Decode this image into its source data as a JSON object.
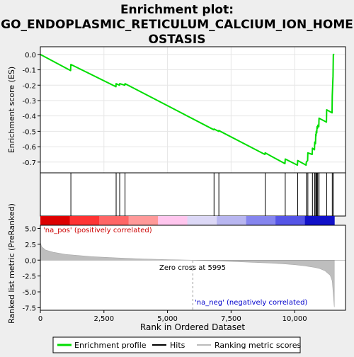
{
  "chart_data": {
    "type": "line",
    "title": "Enrichment plot: GO_ENDOPLASMIC_RETICULUM_CALCIUM_ION_HOMEOSTASIS",
    "title_lines": [
      "Enrichment plot:",
      "GO_ENDOPLASMIC_RETICULUM_CALCIUM_ION_HOME",
      "OSTASIS"
    ],
    "xlabel": "Rank in Ordered Dataset",
    "ylabel_top": "Enrichment score (ES)",
    "ylabel_bottom": "Ranked list metric (PreRanked)",
    "xlim": [
      0,
      12000
    ],
    "es_ylim": [
      -0.77,
      0.05
    ],
    "metric_ylim": [
      -7.9,
      5.5
    ],
    "x_ticks": [
      0,
      2500,
      5000,
      7500,
      10000
    ],
    "x_tick_labels": [
      "0",
      "2,500",
      "5,000",
      "7,500",
      "10,000"
    ],
    "es_ticks": [
      0.0,
      -0.1,
      -0.2,
      -0.3,
      -0.4,
      -0.5,
      -0.6,
      -0.7
    ],
    "es_tick_labels": [
      "0.0",
      "-0.1",
      "-0.2",
      "-0.3",
      "-0.4",
      "-0.5",
      "-0.6",
      "-0.7"
    ],
    "metric_ticks": [
      5.0,
      2.5,
      0.0,
      -2.5,
      -5.0,
      -7.5
    ],
    "metric_tick_labels": [
      "5.0",
      "2.5",
      "0.0",
      "-2.5",
      "-5.0",
      "-7.5"
    ],
    "hits": [
      1200,
      2980,
      3120,
      3330,
      6830,
      7020,
      8840,
      9630,
      10120,
      10460,
      10520,
      10700,
      10790,
      10830,
      10850,
      10880,
      10910,
      10960,
      11260,
      11480,
      11520
    ],
    "es_profile": {
      "x": [
        0,
        1190,
        1200,
        2970,
        2980,
        3110,
        3120,
        3320,
        3330,
        6820,
        6830,
        7010,
        7020,
        8830,
        8840,
        9620,
        9630,
        10110,
        10120,
        10450,
        10460,
        10510,
        10520,
        10690,
        10700,
        10780,
        10790,
        10820,
        10830,
        10840,
        10850,
        10870,
        10880,
        10900,
        10910,
        10950,
        10960,
        11250,
        11260,
        11470,
        11480,
        11510,
        11520,
        11560
      ],
      "y": [
        0.0,
        -0.105,
        -0.065,
        -0.21,
        -0.19,
        -0.2,
        -0.19,
        -0.2,
        -0.19,
        -0.49,
        -0.485,
        -0.5,
        -0.495,
        -0.65,
        -0.64,
        -0.71,
        -0.68,
        -0.72,
        -0.69,
        -0.72,
        -0.7,
        -0.69,
        -0.64,
        -0.65,
        -0.61,
        -0.62,
        -0.57,
        -0.58,
        -0.52,
        -0.53,
        -0.5,
        -0.51,
        -0.47,
        -0.48,
        -0.46,
        -0.47,
        -0.415,
        -0.44,
        -0.36,
        -0.38,
        -0.27,
        -0.14,
        0.0,
        0.0
      ]
    },
    "metric_profile": {
      "x": [
        0,
        50,
        200,
        500,
        1000,
        2000,
        3000,
        4000,
        5000,
        5995,
        7000,
        8000,
        9000,
        9600,
        10000,
        10400,
        10800,
        11000,
        11200,
        11400,
        11480,
        11520,
        11560
      ],
      "y": [
        2.8,
        2.1,
        1.6,
        1.25,
        0.9,
        0.55,
        0.35,
        0.2,
        0.08,
        0.0,
        -0.13,
        -0.28,
        -0.45,
        -0.6,
        -0.72,
        -0.9,
        -1.15,
        -1.35,
        -1.7,
        -2.4,
        -3.3,
        -5.5,
        -7.4
      ]
    },
    "heatmap_band_colors": [
      "#dd0000",
      "#ff3333",
      "#ff6666",
      "#ff9999",
      "#ffc6ee",
      "#dcd8f6",
      "#b8b6f0",
      "#8585ee",
      "#5555e6",
      "#1111c8"
    ],
    "labels": {
      "na_pos": "'na_pos' (positively correlated)",
      "na_neg": "'na_neg' (negatively correlated)",
      "zero_cross": "Zero cross at 5995"
    },
    "zero_cross": 5995,
    "legend": [
      {
        "label": "Enrichment profile",
        "color": "#00dd00"
      },
      {
        "label": "Hits",
        "color": "#000000"
      },
      {
        "label": "Ranking metric scores",
        "color": "#bbbbbb"
      }
    ],
    "colors": {
      "es_line": "#00dd00",
      "metric_fill": "#bebebe",
      "na_pos_text": "#cc0000",
      "na_neg_text": "#0000cc",
      "zero_line": "#999999"
    }
  }
}
